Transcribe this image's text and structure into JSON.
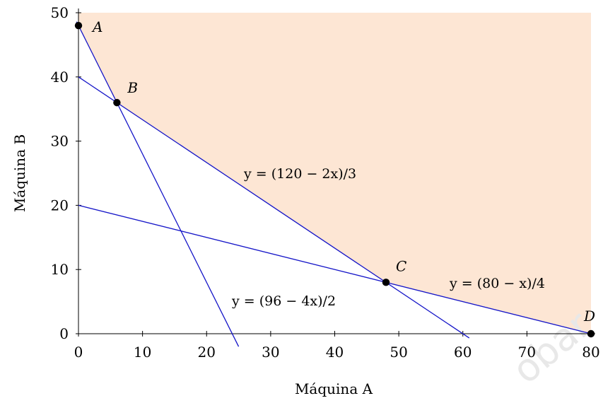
{
  "chart_data": {
    "type": "line",
    "xlabel": "Máquina A",
    "ylabel": "Máquina B",
    "xlim": [
      0,
      80
    ],
    "ylim": [
      0,
      50
    ],
    "x_ticks": [
      0,
      10,
      20,
      30,
      40,
      50,
      60,
      70,
      80
    ],
    "y_ticks": [
      0,
      10,
      20,
      30,
      40,
      50
    ],
    "colors": {
      "lines": "#1515c8",
      "feasible_region": "#fde6d4",
      "points": "#000000"
    },
    "lines": [
      {
        "label": "y = (96 − 4x)/2",
        "slope": -2,
        "intercept": 48,
        "x_range": [
          -0.3,
          25
        ]
      },
      {
        "label": "y = (120 − 2x)/3",
        "slope": -0.6667,
        "intercept": 40,
        "x_range": [
          0,
          61
        ]
      },
      {
        "label": "y = (80 − x)/4",
        "slope": -0.25,
        "intercept": 20,
        "x_range": [
          0,
          80
        ]
      }
    ],
    "feasible_region": [
      [
        0,
        50
      ],
      [
        0,
        48
      ],
      [
        6,
        36
      ],
      [
        48,
        8
      ],
      [
        80,
        0
      ],
      [
        80,
        50
      ]
    ],
    "points": [
      {
        "label": "A",
        "x": 0,
        "y": 48
      },
      {
        "label": "B",
        "x": 6,
        "y": 36
      },
      {
        "label": "C",
        "x": 48,
        "y": 8
      },
      {
        "label": "D",
        "x": 80,
        "y": 0
      }
    ]
  }
}
